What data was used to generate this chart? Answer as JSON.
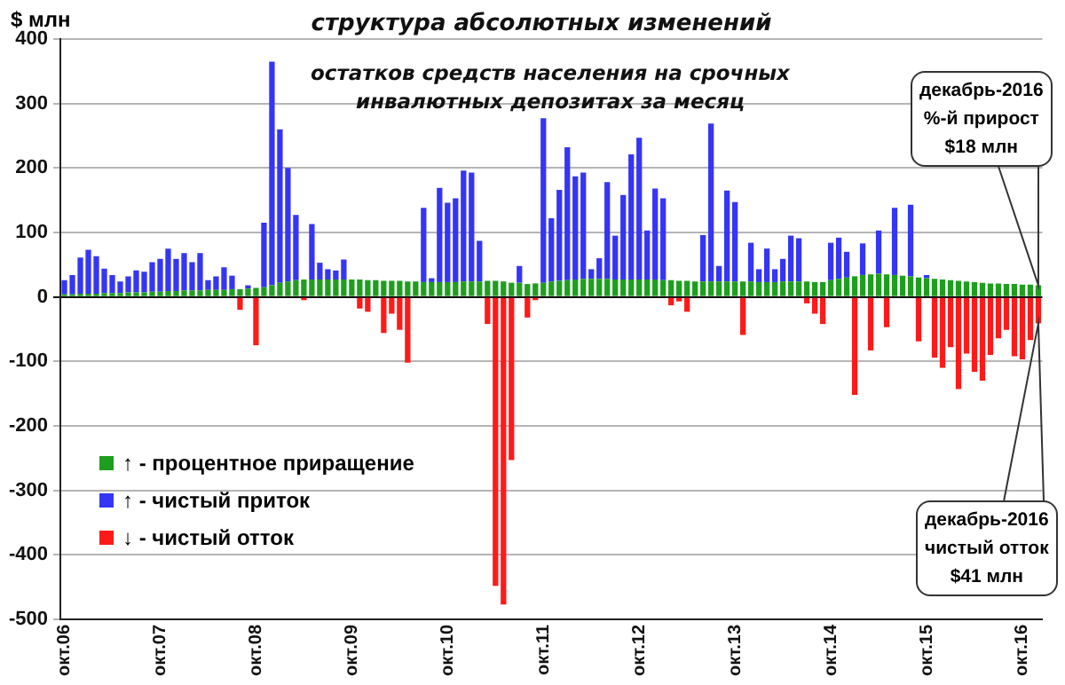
{
  "chart_data": {
    "type": "bar",
    "stacked": true,
    "title": "структура абсолютных изменений",
    "subtitle": "остатков средств населения на срочных инвалютных депозитах за месяц",
    "ylabel": "$ млн",
    "categories": [
      "окт.06",
      null,
      null,
      null,
      null,
      null,
      null,
      null,
      null,
      null,
      null,
      null,
      "окт.07",
      null,
      null,
      null,
      null,
      null,
      null,
      null,
      null,
      null,
      null,
      null,
      "окт.08",
      null,
      null,
      null,
      null,
      null,
      null,
      null,
      null,
      null,
      null,
      null,
      "окт.09",
      null,
      null,
      null,
      null,
      null,
      null,
      null,
      null,
      null,
      null,
      null,
      "окт.10",
      null,
      null,
      null,
      null,
      null,
      null,
      null,
      null,
      null,
      null,
      null,
      "окт.11",
      null,
      null,
      null,
      null,
      null,
      null,
      null,
      null,
      null,
      null,
      null,
      "окт.12",
      null,
      null,
      null,
      null,
      null,
      null,
      null,
      null,
      null,
      null,
      null,
      "окт.13",
      null,
      null,
      null,
      null,
      null,
      null,
      null,
      null,
      null,
      null,
      null,
      "окт.14",
      null,
      null,
      null,
      null,
      null,
      null,
      null,
      null,
      null,
      null,
      null,
      "окт.15",
      null,
      null,
      null,
      null,
      null,
      null,
      null,
      null,
      null,
      null,
      null,
      "окт.16",
      null,
      null
    ],
    "series": [
      {
        "name": "↑ - процентное приращение",
        "color": "#1e9e1e",
        "values": [
          4,
          4,
          5,
          5,
          5,
          6,
          6,
          6,
          7,
          7,
          7,
          8,
          8,
          9,
          9,
          10,
          10,
          10,
          11,
          11,
          11,
          12,
          12,
          13,
          14,
          15,
          18,
          22,
          24,
          26,
          27,
          27,
          27,
          27,
          27,
          27,
          27,
          27,
          26,
          26,
          25,
          25,
          25,
          24,
          24,
          23,
          23,
          23,
          23,
          23,
          24,
          24,
          24,
          25,
          25,
          24,
          22,
          22,
          20,
          21,
          22,
          24,
          25,
          26,
          27,
          28,
          28,
          28,
          28,
          27,
          27,
          27,
          27,
          27,
          27,
          26,
          26,
          25,
          25,
          24,
          24,
          24,
          24,
          24,
          24,
          24,
          24,
          23,
          23,
          23,
          24,
          24,
          24,
          24,
          23,
          23,
          26,
          28,
          30,
          32,
          34,
          35,
          36,
          35,
          34,
          33,
          32,
          30,
          29,
          28,
          27,
          26,
          25,
          24,
          23,
          22,
          21,
          21,
          20,
          20,
          19,
          19,
          18
        ]
      },
      {
        "name": "↑ - чистый приток",
        "color": "#3535f5",
        "values": [
          22,
          30,
          56,
          68,
          58,
          38,
          28,
          18,
          25,
          34,
          32,
          46,
          51,
          66,
          50,
          58,
          44,
          58,
          15,
          21,
          35,
          21,
          null,
          5,
          null,
          100,
          347,
          238,
          176,
          101,
          null,
          86,
          26,
          16,
          14,
          31,
          null,
          null,
          null,
          null,
          null,
          null,
          null,
          null,
          null,
          115,
          6,
          146,
          123,
          130,
          172,
          169,
          63,
          null,
          null,
          null,
          null,
          26,
          null,
          null,
          255,
          98,
          141,
          206,
          160,
          165,
          15,
          32,
          150,
          68,
          131,
          194,
          220,
          76,
          141,
          127,
          null,
          null,
          null,
          null,
          72,
          245,
          24,
          141,
          123,
          null,
          60,
          20,
          52,
          20,
          35,
          71,
          67,
          null,
          null,
          null,
          58,
          64,
          40,
          null,
          49,
          null,
          67,
          null,
          104,
          null,
          111,
          null,
          5,
          null,
          null,
          null,
          null,
          null,
          null,
          null,
          null,
          null,
          null,
          null,
          null,
          null,
          null
        ]
      },
      {
        "name": "↓ - чистый отток",
        "color": "#ff1a1a",
        "values": [
          null,
          null,
          null,
          null,
          null,
          null,
          null,
          null,
          null,
          null,
          null,
          null,
          null,
          null,
          null,
          null,
          null,
          null,
          null,
          null,
          null,
          null,
          -20,
          null,
          -75,
          null,
          null,
          null,
          null,
          null,
          -5,
          null,
          null,
          null,
          null,
          null,
          null,
          -18,
          -23,
          null,
          -56,
          -26,
          -51,
          -102,
          null,
          null,
          null,
          null,
          null,
          null,
          null,
          null,
          null,
          -42,
          -448,
          -477,
          -253,
          null,
          -32,
          -5,
          null,
          null,
          null,
          null,
          null,
          null,
          null,
          null,
          null,
          null,
          null,
          null,
          null,
          null,
          null,
          null,
          -13,
          -7,
          -23,
          null,
          null,
          null,
          null,
          null,
          null,
          -59,
          null,
          null,
          null,
          null,
          null,
          null,
          null,
          -10,
          -26,
          -42,
          null,
          null,
          null,
          -152,
          null,
          -83,
          null,
          -47,
          null,
          null,
          null,
          -69,
          null,
          -94,
          -110,
          -78,
          -143,
          -88,
          -116,
          -130,
          -90,
          -64,
          -51,
          -92,
          -97,
          -67,
          -41
        ]
      }
    ],
    "ylim": [
      -500,
      400
    ],
    "yticks": [
      -500,
      -400,
      -300,
      -200,
      -100,
      0,
      100,
      200,
      300,
      400
    ],
    "grid": "y",
    "legend": "left",
    "annotations": [
      "декабрь-2016\n%-й прирост\n$18 млн",
      "декабрь-2016\nчистый  отток\n$41 млн"
    ]
  }
}
